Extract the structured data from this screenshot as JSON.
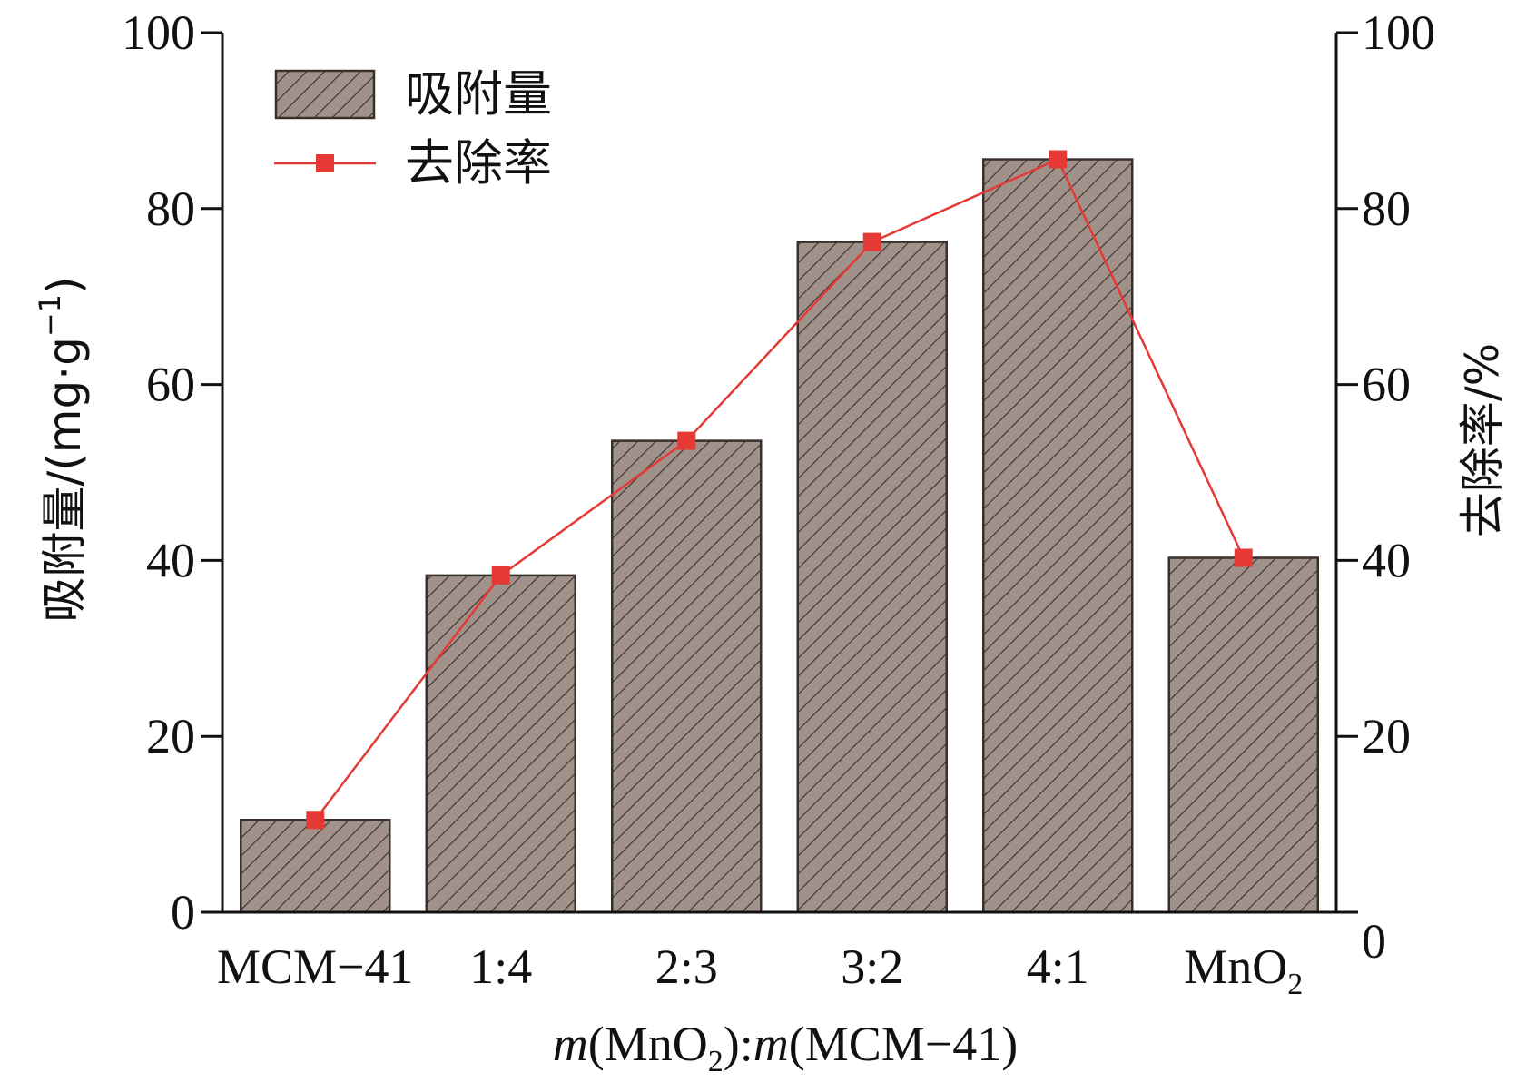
{
  "chart_data": {
    "type": "bar",
    "categories": [
      "MCM−41",
      "1:4",
      "2:3",
      "3:2",
      "4:1",
      "MnO"
    ],
    "last_category_subscript": "2",
    "series": [
      {
        "name": "吸附量",
        "type": "bar",
        "axis": "left",
        "values": [
          10.5,
          38.3,
          53.6,
          76.2,
          85.6,
          40.3
        ]
      },
      {
        "name": "去除率",
        "type": "line",
        "axis": "right",
        "values": [
          10.5,
          38.3,
          53.6,
          76.2,
          85.6,
          40.3
        ]
      }
    ],
    "ylim": [
      0,
      100
    ],
    "y2lim": [
      0,
      100
    ],
    "yticks": [
      "0",
      "20",
      "40",
      "60",
      "80",
      "100"
    ],
    "y2ticks": [
      "0",
      "20",
      "40",
      "60",
      "80",
      "100"
    ],
    "ylabel_main": "吸附量/(mg·g",
    "ylabel_sup": "−1",
    "ylabel_close": ")",
    "y2label": "去除率/%",
    "xlabel_parts": {
      "m1": "m",
      "p1": "(MnO",
      "sub": "2",
      "p2": "):",
      "m2": "m",
      "p3": "(MCM−41)"
    },
    "legend_position": "top-left",
    "grid": false,
    "colors": {
      "bar_fill": "#a0928a",
      "bar_stroke": "#3a302b",
      "hatch": "#3a302b",
      "line": "#e53935",
      "marker": "#e53935"
    }
  }
}
